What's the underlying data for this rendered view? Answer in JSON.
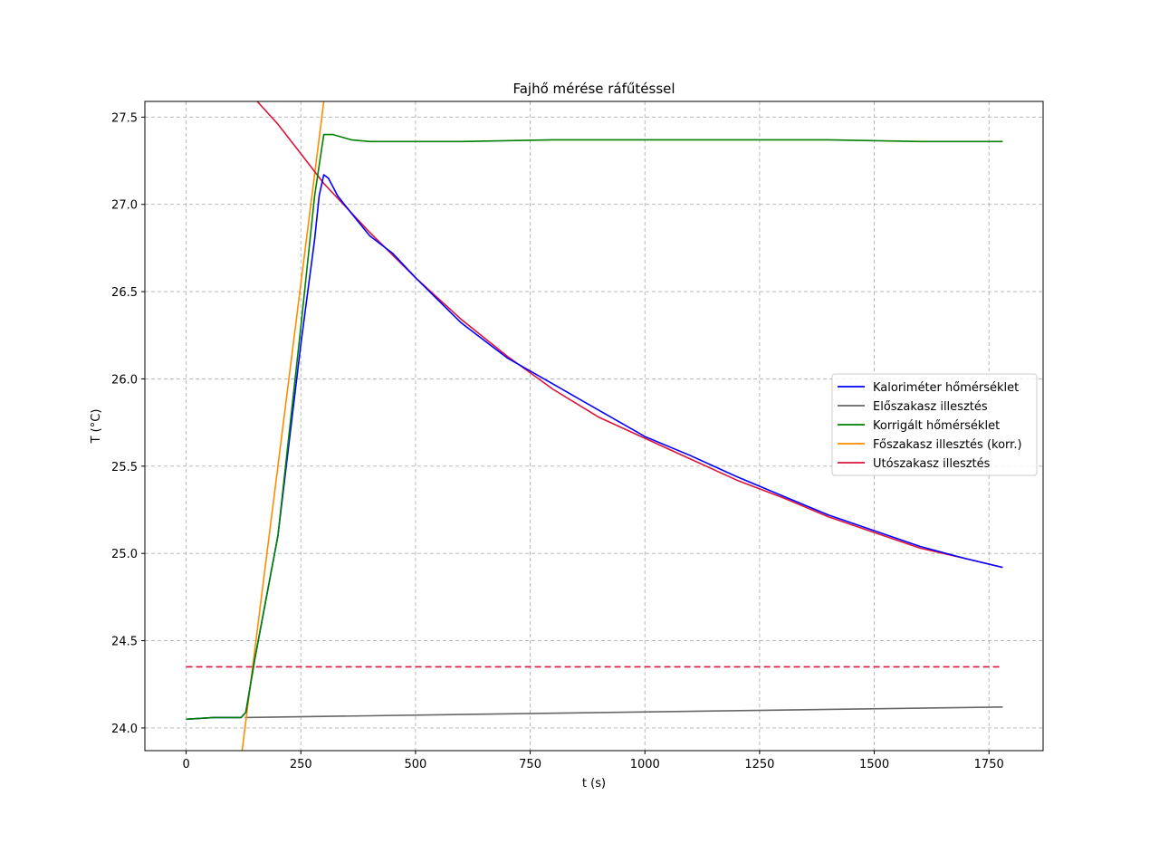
{
  "chart_data": {
    "type": "line",
    "title": "Fajhő mérése ráfűtéssel",
    "xlabel": "t (s)",
    "ylabel": "T (°C)",
    "xlim": [
      -90,
      1868
    ],
    "ylim": [
      23.87,
      27.59
    ],
    "xticks": [
      0,
      250,
      500,
      750,
      1000,
      1250,
      1500,
      1750
    ],
    "yticks": [
      24.0,
      24.5,
      25.0,
      25.5,
      26.0,
      26.5,
      27.0,
      27.5
    ],
    "xtick_labels": [
      "0",
      "250",
      "500",
      "750",
      "1000",
      "1250",
      "1500",
      "1750"
    ],
    "ytick_labels": [
      "24.0",
      "24.5",
      "25.0",
      "25.5",
      "26.0",
      "26.5",
      "27.0",
      "27.5"
    ],
    "grid": true,
    "legend_position": "center-right",
    "series": [
      {
        "name": "Kaloriméter hőmérséklet",
        "color": "#0000ff",
        "x": [
          0,
          60,
          120,
          130,
          150,
          200,
          250,
          280,
          290,
          300,
          310,
          330,
          360,
          400,
          450,
          500,
          600,
          700,
          800,
          900,
          1000,
          1100,
          1200,
          1300,
          1400,
          1500,
          1600,
          1700,
          1780
        ],
        "y": [
          24.05,
          24.06,
          24.06,
          24.09,
          24.4,
          25.1,
          26.2,
          26.8,
          27.05,
          27.17,
          27.15,
          27.05,
          26.95,
          26.82,
          26.72,
          26.58,
          26.32,
          26.12,
          25.97,
          25.82,
          25.67,
          25.56,
          25.44,
          25.33,
          25.22,
          25.13,
          25.04,
          24.97,
          24.92
        ]
      },
      {
        "name": "Előszakasz illesztés",
        "color": "#666666",
        "x": [
          128,
          1780
        ],
        "y": [
          24.06,
          24.12
        ]
      },
      {
        "name": "Korrigált hőmérséklet",
        "color": "#008000",
        "x": [
          0,
          60,
          120,
          130,
          150,
          200,
          250,
          280,
          300,
          320,
          360,
          400,
          500,
          600,
          800,
          1000,
          1200,
          1400,
          1600,
          1780
        ],
        "y": [
          24.05,
          24.06,
          24.06,
          24.09,
          24.4,
          25.1,
          26.3,
          27.05,
          27.4,
          27.4,
          27.37,
          27.36,
          27.36,
          27.36,
          27.37,
          27.37,
          27.37,
          27.37,
          27.36,
          27.36
        ]
      },
      {
        "name": "Főszakasz illesztés (korr.)",
        "color": "#ff8c00",
        "x": [
          122,
          300
        ],
        "y": [
          23.87,
          27.59
        ]
      },
      {
        "name": "Utószakasz illesztés",
        "color": "#dc143c",
        "x": [
          155,
          200,
          250,
          300,
          350,
          400,
          500,
          600,
          700,
          800,
          900,
          1000,
          1100,
          1200,
          1300,
          1400,
          1500,
          1600,
          1700,
          1780
        ],
        "y": [
          27.59,
          27.46,
          27.29,
          27.12,
          26.98,
          26.84,
          26.58,
          26.34,
          26.13,
          25.94,
          25.78,
          25.66,
          25.54,
          25.42,
          25.32,
          25.21,
          25.12,
          25.03,
          24.97,
          24.92
        ]
      }
    ],
    "reference_line": {
      "color": "#dc143c",
      "style": "dashed",
      "y": 24.35,
      "x": [
        0,
        1780
      ]
    }
  }
}
